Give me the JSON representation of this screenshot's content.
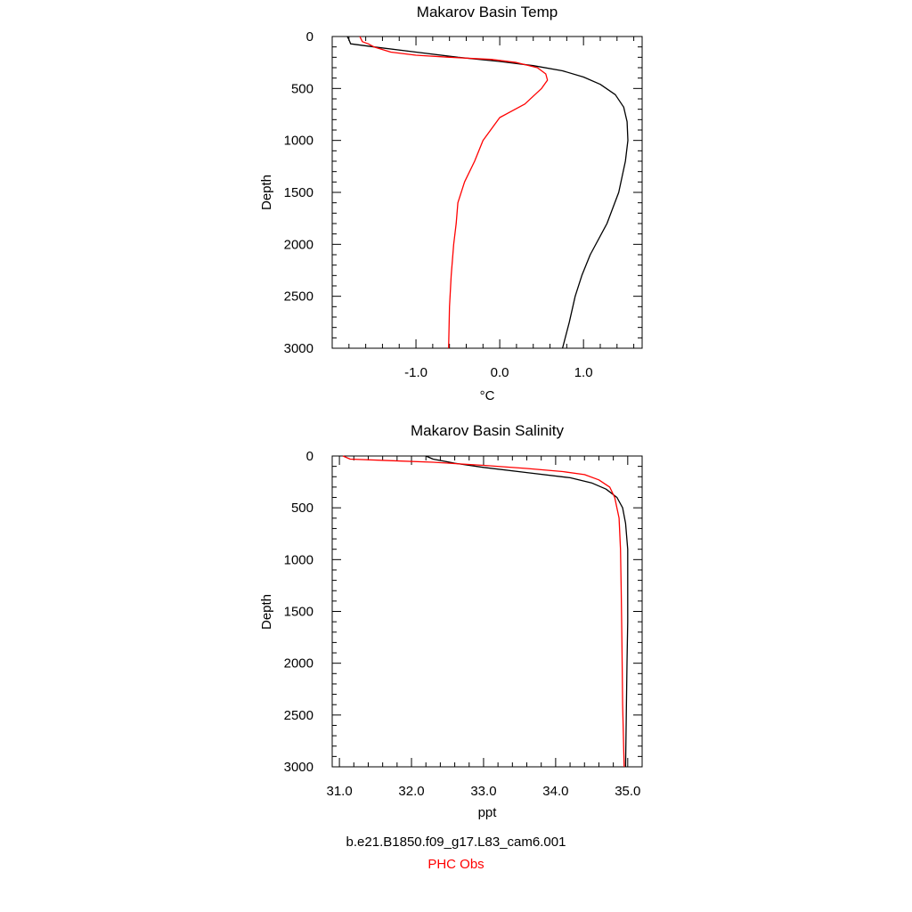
{
  "colors": {
    "model": "#000000",
    "obs": "#ff0000",
    "axis": "#000000"
  },
  "footer": {
    "model_label": "b.e21.B1850.f09_g17.L83_cam6.001",
    "obs_label": "PHC Obs"
  },
  "chart_data": [
    {
      "type": "line",
      "title": "Makarov Basin Temp",
      "xlabel": "°C",
      "ylabel": "Depth",
      "xlim": [
        -2.0,
        1.7
      ],
      "ylim": [
        0,
        3000
      ],
      "y_inverted": true,
      "xticks": [
        -1.0,
        0.0,
        1.0
      ],
      "xtick_labels": [
        "-1.0",
        "0.0",
        "1.0"
      ],
      "yticks": [
        0,
        500,
        1000,
        1500,
        2000,
        2500,
        3000
      ],
      "ytick_labels": [
        "0",
        "500",
        "1000",
        "1500",
        "2000",
        "2500",
        "3000"
      ],
      "grid": false,
      "series": [
        {
          "key": "model",
          "x": [
            -1.82,
            -1.8,
            -1.78,
            -1.5,
            -1.0,
            -0.5,
            0.0,
            0.4,
            0.75,
            1.0,
            1.2,
            1.38,
            1.48,
            1.52,
            1.53,
            1.5,
            1.42,
            1.28,
            1.08,
            0.98,
            0.9,
            0.83,
            0.75
          ],
          "y": [
            0,
            30,
            70,
            100,
            150,
            200,
            240,
            280,
            330,
            390,
            460,
            560,
            680,
            820,
            1000,
            1200,
            1500,
            1800,
            2100,
            2300,
            2500,
            2750,
            3000
          ]
        },
        {
          "key": "obs",
          "x": [
            -1.67,
            -1.64,
            -1.57,
            -1.5,
            -1.3,
            -1.0,
            -0.6,
            -0.1,
            0.2,
            0.45,
            0.55,
            0.57,
            0.5,
            0.3,
            0.0,
            -0.2,
            -0.3,
            -0.42,
            -0.5,
            -0.52,
            -0.55,
            -0.58,
            -0.6,
            -0.61
          ],
          "y": [
            0,
            50,
            70,
            100,
            150,
            180,
            200,
            220,
            250,
            300,
            360,
            420,
            500,
            650,
            780,
            1000,
            1200,
            1400,
            1600,
            1800,
            2000,
            2300,
            2600,
            3000
          ]
        }
      ]
    },
    {
      "type": "line",
      "title": "Makarov Basin Salinity",
      "xlabel": "ppt",
      "ylabel": "Depth",
      "xlim": [
        30.9,
        35.2
      ],
      "ylim": [
        0,
        3000
      ],
      "y_inverted": true,
      "xticks": [
        31.0,
        32.0,
        33.0,
        34.0,
        35.0
      ],
      "xtick_labels": [
        "31.0",
        "32.0",
        "33.0",
        "34.0",
        "35.0"
      ],
      "yticks": [
        0,
        500,
        1000,
        1500,
        2000,
        2500,
        3000
      ],
      "ytick_labels": [
        "0",
        "500",
        "1000",
        "1500",
        "2000",
        "2500",
        "3000"
      ],
      "grid": false,
      "series": [
        {
          "key": "model",
          "x": [
            32.2,
            32.3,
            32.6,
            33.0,
            33.6,
            34.2,
            34.5,
            34.7,
            34.85,
            34.93,
            34.97,
            35.0,
            35.0,
            35.0,
            34.99,
            34.98,
            34.97
          ],
          "y": [
            0,
            30,
            70,
            110,
            160,
            210,
            260,
            320,
            400,
            500,
            650,
            900,
            1200,
            1600,
            2000,
            2500,
            3000
          ]
        },
        {
          "key": "obs",
          "x": [
            31.05,
            31.15,
            31.7,
            32.3,
            33.0,
            33.6,
            34.1,
            34.4,
            34.6,
            34.75,
            34.82,
            34.88,
            34.9,
            34.91,
            34.92,
            34.93,
            34.95
          ],
          "y": [
            0,
            30,
            45,
            60,
            90,
            120,
            150,
            180,
            230,
            300,
            400,
            600,
            900,
            1300,
            1800,
            2400,
            3000
          ]
        }
      ]
    }
  ]
}
